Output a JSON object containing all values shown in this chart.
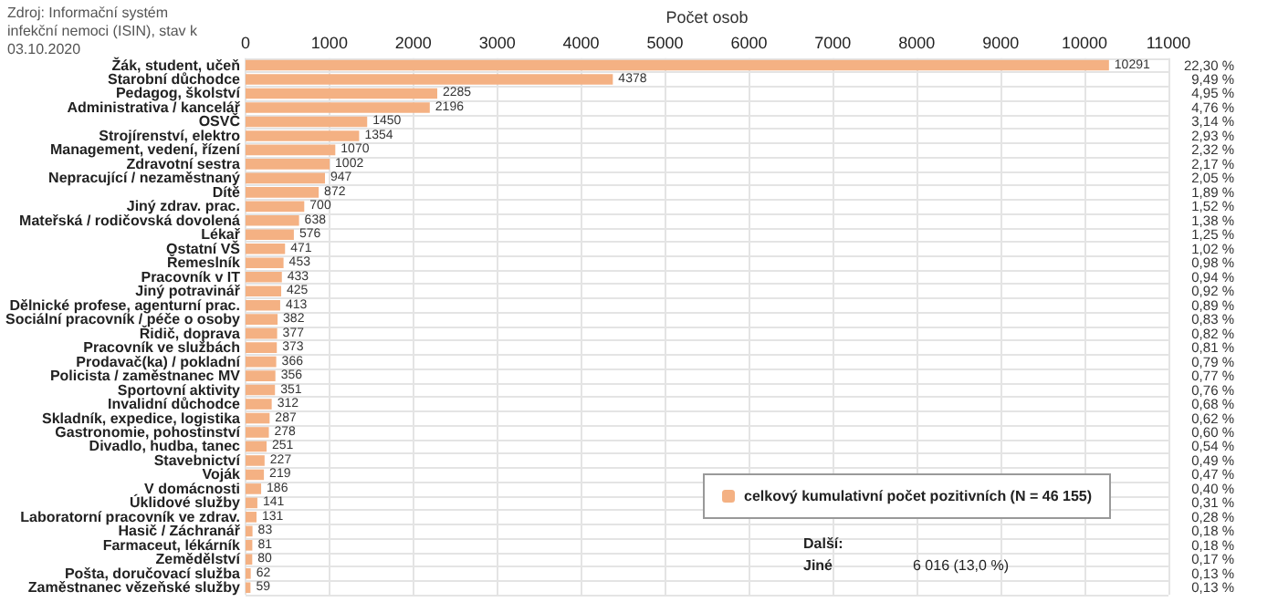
{
  "chart_data": {
    "type": "bar",
    "orientation": "horizontal",
    "xlabel": "Počet osob",
    "categories": [
      "Žák, student, učeň",
      "Starobní důchodce",
      "Pedagog, školství",
      "Administrativa / kancelář",
      "OSVČ",
      "Strojírenství, elektro",
      "Management, vedení, řízení",
      "Zdravotní sestra",
      "Nepracující / nezaměstnaný",
      "Dítě",
      "Jiný zdrav. prac.",
      "Mateřská / rodičovská dovolená",
      "Lékař",
      "Ostatní VŠ",
      "Řemeslník",
      "Pracovník v IT",
      "Jiný potravinář",
      "Dělnické profese, agenturní prac.",
      "Sociální pracovník / péče o osoby",
      "Řidič, doprava",
      "Pracovník ve službách",
      "Prodavač(ka) / pokladní",
      "Policista / zaměstnanec MV",
      "Sportovní aktivity",
      "Invalidní důchodce",
      "Skladník, expedice, logistika",
      "Gastronomie, pohostinství",
      "Divadlo, hudba, tanec",
      "Stavebnictví",
      "Voják",
      "V domácnosti",
      "Úklidové služby",
      "Laboratorní pracovník ve zdrav.",
      "Hasič / Záchranář",
      "Farmaceut, lékárník",
      "Zemědělství",
      "Pošta, doručovací služba",
      "Zaměstnanec vězeňské služby"
    ],
    "series": [
      {
        "name": "celkový kumulativní počet pozitivních (N = 46 155)",
        "color": "#f4b183",
        "values": [
          10291,
          4378,
          2285,
          2196,
          1450,
          1354,
          1070,
          1002,
          947,
          872,
          700,
          638,
          576,
          471,
          453,
          433,
          425,
          413,
          382,
          377,
          373,
          366,
          356,
          351,
          312,
          287,
          278,
          251,
          227,
          219,
          186,
          141,
          131,
          83,
          81,
          80,
          62,
          59
        ]
      }
    ],
    "data_labels": true,
    "xlim": [
      0,
      11000
    ],
    "xticks": [
      0,
      1000,
      2000,
      3000,
      4000,
      5000,
      6000,
      7000,
      8000,
      9000,
      10000,
      11000
    ],
    "grid": true,
    "legend": "bottom right",
    "annotations": [
      "Zdroj: Informační systém infekční nemoci (ISIN), stav k 03.10.2020",
      "22,30 %",
      "9,49 %",
      "4,95 %",
      "4,76 %",
      "3,14 %",
      "2,93 %",
      "2,32 %",
      "2,17 %",
      "2,05 %",
      "1,89 %",
      "1,52 %",
      "1,38 %",
      "1,25 %",
      "1,02 %",
      "0,98 %",
      "0,94 %",
      "0,92 %",
      "0,89 %",
      "0,83 %",
      "0,82 %",
      "0,81 %",
      "0,79 %",
      "0,77 %",
      "0,76 %",
      "0,68 %",
      "0,62 %",
      "0,60 %",
      "0,54 %",
      "0,49 %",
      "0,47 %",
      "0,40 %",
      "0,31 %",
      "0,28 %",
      "0,18 %",
      "0,18 %",
      "0,17 %",
      "0,13 %",
      "0,13 %",
      "Další:",
      "Jiné",
      "6 016 (13,0 %)"
    ]
  }
}
